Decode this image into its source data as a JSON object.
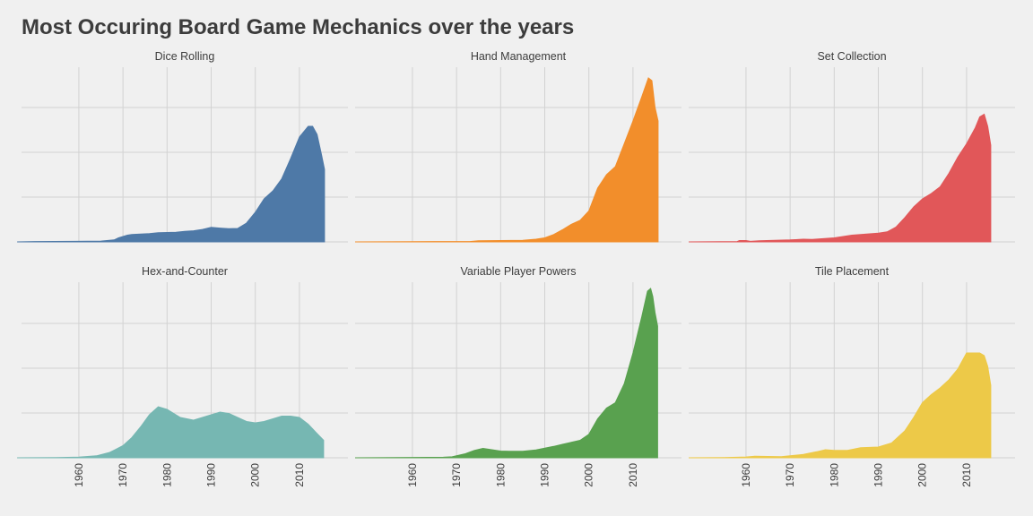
{
  "chart_data": {
    "type": "area",
    "title": "Most Occuring Board Game Mechanics over the years",
    "xlabel": "",
    "ylabel": "",
    "xlim": [
      1947,
      2021
    ],
    "ylim": [
      0,
      1
    ],
    "x_ticks": [
      1960,
      1970,
      1980,
      1990,
      2000,
      2010
    ],
    "grid": true,
    "facets": [
      {
        "label": "Dice Rolling",
        "color": "#4e79a7",
        "x": [
          1946,
          1950,
          1959,
          1962,
          1965,
          1968,
          1969,
          1971,
          1972,
          1974,
          1976,
          1978,
          1980,
          1982,
          1984,
          1986,
          1988,
          1990,
          1992,
          1994,
          1996,
          1998,
          2000,
          2002,
          2004,
          2006,
          2008,
          2010,
          2012,
          2013,
          2014,
          2015,
          2015.7
        ],
        "y": [
          0,
          0.003,
          0.004,
          0.005,
          0.006,
          0.015,
          0.03,
          0.05,
          0.055,
          0.058,
          0.062,
          0.068,
          0.07,
          0.072,
          0.078,
          0.083,
          0.093,
          0.108,
          0.103,
          0.098,
          0.1,
          0.14,
          0.22,
          0.32,
          0.38,
          0.47,
          0.62,
          0.78,
          0.86,
          0.86,
          0.8,
          0.65,
          0.54
        ]
      },
      {
        "label": "Hand Management",
        "color": "#f28e2b",
        "x": [
          1947,
          1960,
          1965,
          1973,
          1975,
          1980,
          1985,
          1988,
          1990,
          1992,
          1994,
          1996,
          1998,
          2000,
          2002,
          2004,
          2006,
          2008,
          2010,
          2012,
          2013.5,
          2014.3,
          2015,
          2015.7
        ],
        "y": [
          0,
          0.002,
          0.003,
          0.003,
          0.008,
          0.01,
          0.012,
          0.02,
          0.03,
          0.055,
          0.09,
          0.13,
          0.16,
          0.23,
          0.4,
          0.5,
          0.56,
          0.73,
          0.9,
          1.08,
          1.22,
          1.2,
          1.0,
          0.9
        ]
      },
      {
        "label": "Set Collection",
        "color": "#e15759",
        "x": [
          1947,
          1958,
          1958.5,
          1960,
          1961,
          1963,
          1970,
          1973,
          1975,
          1980,
          1984,
          1990,
          1992,
          1994,
          1996,
          1998,
          2000,
          2002,
          2004,
          2006,
          2008,
          2010,
          2012,
          2013,
          2014,
          2014.8,
          2015.5
        ],
        "y": [
          0,
          0.003,
          0.01,
          0.01,
          0.004,
          0.008,
          0.015,
          0.02,
          0.018,
          0.03,
          0.05,
          0.065,
          0.075,
          0.11,
          0.18,
          0.26,
          0.32,
          0.36,
          0.41,
          0.51,
          0.63,
          0.73,
          0.85,
          0.93,
          0.95,
          0.86,
          0.72
        ]
      },
      {
        "label": "Hex-and-Counter",
        "color": "#76b7b2",
        "x": [
          1946,
          1955,
          1960,
          1964,
          1967,
          1970,
          1972,
          1974,
          1976,
          1978,
          1980,
          1983,
          1986,
          1988,
          1990,
          1992,
          1994,
          1996,
          1998,
          2000,
          2002,
          2004,
          2006,
          2008,
          2010,
          2012,
          2014,
          2015.5
        ],
        "y": [
          0,
          0.002,
          0.005,
          0.015,
          0.04,
          0.09,
          0.15,
          0.23,
          0.32,
          0.38,
          0.36,
          0.3,
          0.28,
          0.3,
          0.32,
          0.34,
          0.33,
          0.3,
          0.27,
          0.26,
          0.27,
          0.29,
          0.31,
          0.31,
          0.3,
          0.25,
          0.18,
          0.13
        ]
      },
      {
        "label": "Variable Player Powers",
        "color": "#59a14f",
        "x": [
          1947,
          1960,
          1967,
          1969,
          1970,
          1972,
          1974,
          1976,
          1978,
          1980,
          1982,
          1985,
          1988,
          1990,
          1992,
          1994,
          1996,
          1998,
          2000,
          2002,
          2004,
          2006,
          2008,
          2010,
          2012,
          2013.3,
          2014,
          2014.5,
          2015,
          2015.6
        ],
        "y": [
          0,
          0.003,
          0.004,
          0.007,
          0.015,
          0.03,
          0.055,
          0.07,
          0.06,
          0.05,
          0.048,
          0.048,
          0.058,
          0.072,
          0.085,
          0.1,
          0.115,
          0.13,
          0.175,
          0.29,
          0.37,
          0.41,
          0.55,
          0.78,
          1.05,
          1.24,
          1.26,
          1.2,
          1.08,
          0.98
        ]
      },
      {
        "label": "Tile Placement",
        "color": "#edc948",
        "x": [
          1947,
          1955,
          1960,
          1962,
          1965,
          1968,
          1970,
          1973,
          1976,
          1978,
          1980,
          1983,
          1986,
          1990,
          1993,
          1996,
          1998,
          2000,
          2002,
          2004,
          2006,
          2008,
          2010,
          2012,
          2013,
          2014,
          2014.8,
          2015.5
        ],
        "y": [
          0,
          0.002,
          0.006,
          0.012,
          0.01,
          0.008,
          0.015,
          0.025,
          0.045,
          0.06,
          0.055,
          0.055,
          0.075,
          0.08,
          0.11,
          0.2,
          0.3,
          0.41,
          0.47,
          0.52,
          0.58,
          0.66,
          0.78,
          0.78,
          0.78,
          0.76,
          0.68,
          0.54
        ]
      }
    ]
  }
}
